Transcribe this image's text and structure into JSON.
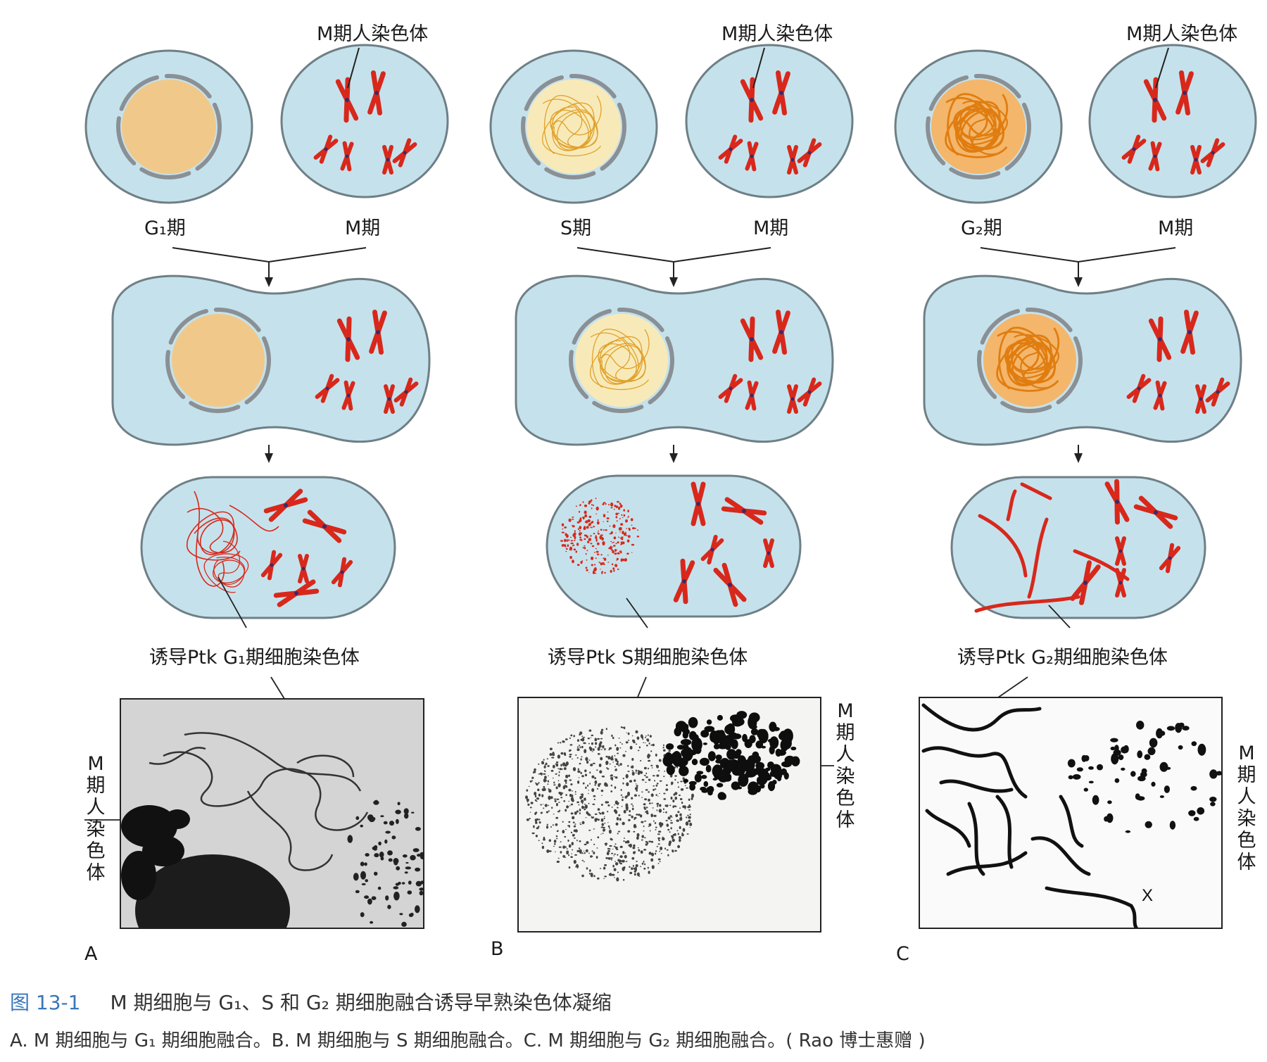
{
  "labels": {
    "m_chromosome": "M期人染色体",
    "g1_phase": "G₁期",
    "s_phase": "S期",
    "g2_phase": "G₂期",
    "m_phase": "M期",
    "induced_g1": "诱导Ptk G₁期细胞染色体",
    "induced_s": "诱导Ptk S期细胞染色体",
    "induced_g2": "诱导Ptk G₂期细胞染色体",
    "m_chromosome_vertical": "M期人染色体",
    "x_mark": "X"
  },
  "panels": [
    "A",
    "B",
    "C"
  ],
  "caption": {
    "figure_number": "图 13-1",
    "title": "M 期细胞与 G₁、S 和 G₂ 期细胞融合诱导早熟染色体凝缩",
    "subtitle": "A. M 期细胞与 G₁ 期细胞融合。B. M 期细胞与 S 期细胞融合。C. M 期细胞与 G₂ 期细胞融合。( Rao 博士惠赠 )"
  },
  "colors": {
    "cytoplasm": "#c5e2ec",
    "membrane": "#6f7f86",
    "nucleus_g1": "#f0c98a",
    "nucleus_s": "#f8eab8",
    "nucleus_g2": "#f3b66b",
    "chromosome": "#d8281b",
    "caption_accent": "#3a76b8"
  }
}
